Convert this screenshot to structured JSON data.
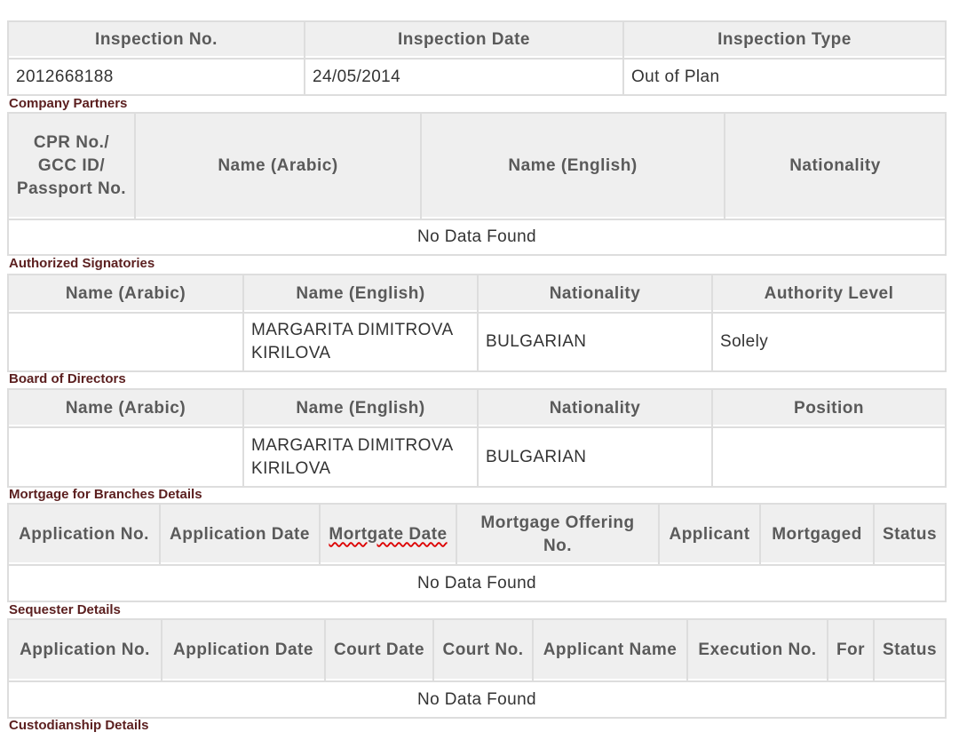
{
  "inspection": {
    "headers": [
      "Inspection No.",
      "Inspection Date",
      "Inspection Type"
    ],
    "values": [
      "2012668188",
      "24/05/2014",
      "Out of Plan"
    ]
  },
  "partners": {
    "title": "Company Partners",
    "headers": [
      "CPR No./ GCC ID/ Passport No.",
      "Name (Arabic)",
      "Name (English)",
      "Nationality"
    ],
    "empty": "No Data Found"
  },
  "signatories": {
    "title": "Authorized Signatories",
    "headers": [
      "Name (Arabic)",
      "Name (English)",
      "Nationality",
      "Authority Level"
    ],
    "rows": [
      [
        "",
        "MARGARITA DIMITROVA KIRILOVA",
        "BULGARIAN",
        "Solely"
      ]
    ]
  },
  "board": {
    "title": "Board of Directors",
    "headers": [
      "Name (Arabic)",
      "Name (English)",
      "Nationality",
      "Position"
    ],
    "rows": [
      [
        "",
        "MARGARITA DIMITROVA KIRILOVA",
        "BULGARIAN",
        ""
      ]
    ]
  },
  "mortgage": {
    "title": "Mortgage for Branches Details",
    "headers": [
      "Application No.",
      "Application Date",
      "Mortgate Date",
      "Mortgage Offering No.",
      "Applicant",
      "Mortgaged",
      "Status"
    ],
    "empty": "No Data Found"
  },
  "sequester": {
    "title": "Sequester Details",
    "headers": [
      "Application No.",
      "Application Date",
      "Court Date",
      "Court No.",
      "Applicant Name",
      "Execution No.",
      "For",
      "Status"
    ],
    "empty": "No Data Found"
  },
  "custodianship": {
    "title": "Custodianship Details"
  }
}
